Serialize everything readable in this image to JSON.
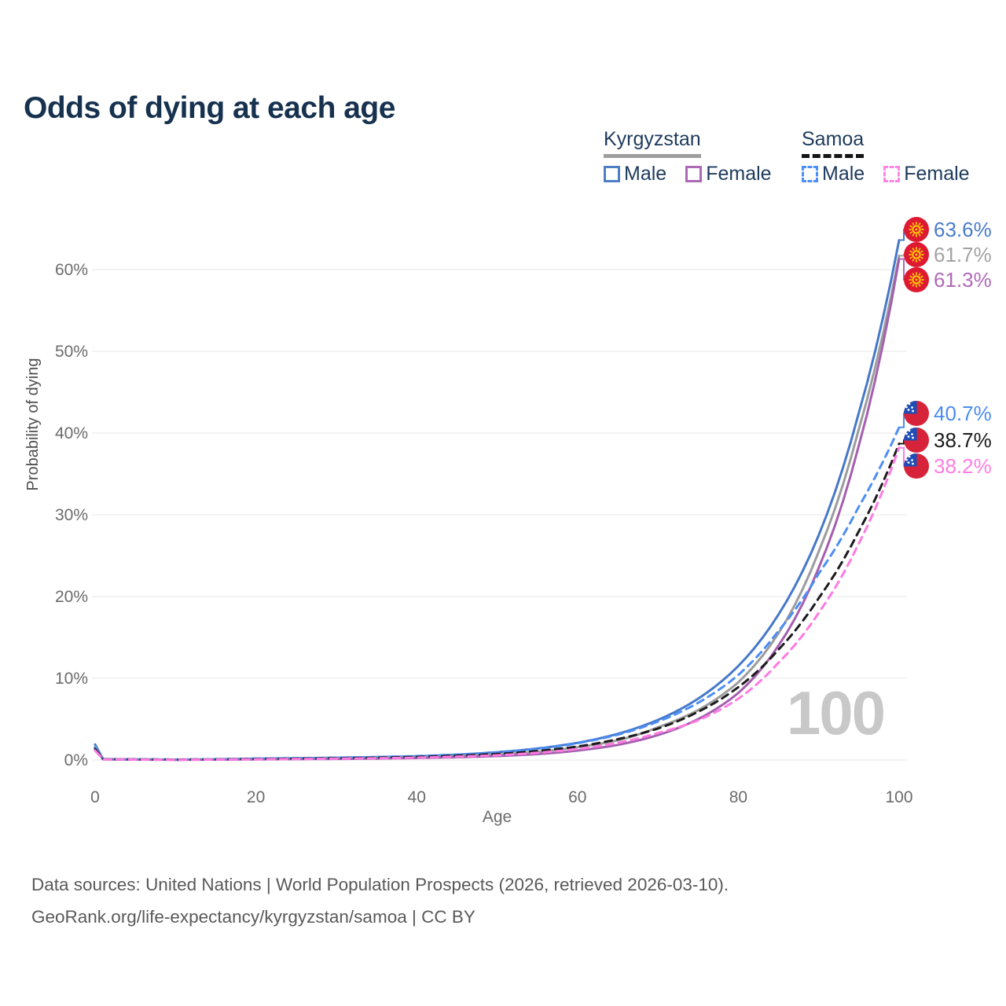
{
  "page": {
    "title": "Odds of dying at each age",
    "watermark_age": "100",
    "footer_line1": "Data sources: United Nations | World Population Prospects (2026, retrieved 2026-03-10).",
    "footer_line2": "GeoRank.org/life-expectancy/kyrgyzstan/samoa | CC BY"
  },
  "legend": {
    "groups": [
      {
        "name": "Kyrgyzstan",
        "underline_style": "solid",
        "underline_color": "#9e9e9e",
        "items": [
          {
            "label": "Male",
            "swatch_color": "#4e7fc6",
            "swatch_style": "solid"
          },
          {
            "label": "Female",
            "swatch_color": "#ad69b5",
            "swatch_style": "solid"
          }
        ]
      },
      {
        "name": "Samoa",
        "underline_style": "dashed",
        "underline_color": "#151515",
        "items": [
          {
            "label": "Male",
            "swatch_color": "#4d8ef5",
            "swatch_style": "dashed"
          },
          {
            "label": "Female",
            "swatch_color": "#ff85e6",
            "swatch_style": "dashed"
          }
        ]
      }
    ]
  },
  "chart_data": {
    "type": "line",
    "title": "Odds of dying at each age",
    "xlabel": "Age",
    "ylabel": "Probability of dying",
    "xlim": [
      0,
      100
    ],
    "ylim_percent": [
      0,
      66
    ],
    "xticks": [
      0,
      20,
      40,
      60,
      80,
      100
    ],
    "ytick_values": [
      0,
      10,
      20,
      30,
      40,
      50,
      60
    ],
    "ytick_labels": [
      "0%",
      "10%",
      "20%",
      "30%",
      "40%",
      "50%",
      "60%"
    ],
    "grid": "horizontal-only",
    "legend_position": "top-right",
    "control_ages": [
      0,
      1,
      10,
      20,
      30,
      40,
      50,
      55,
      60,
      65,
      70,
      75,
      80,
      85,
      90,
      95,
      100
    ],
    "series": [
      {
        "name": "Kyrgyzstan Male",
        "country": "Kyrgyzstan",
        "sex": "Male",
        "line_style": "solid",
        "color": "#4678c8",
        "label_color": "#4a7cc9",
        "flag": "kg",
        "end_label": "63.6%",
        "end_value": 63.6,
        "values_percent": [
          1.9,
          0.12,
          0.05,
          0.17,
          0.28,
          0.45,
          0.95,
          1.4,
          2.1,
          3.2,
          4.9,
          7.5,
          11.5,
          17.8,
          27.5,
          42.5,
          63.6
        ]
      },
      {
        "name": "Kyrgyzstan Both",
        "country": "Kyrgyzstan",
        "sex": "Both",
        "line_style": "solid",
        "color": "#9c9c9c",
        "label_color": "#a3a3a3",
        "flag": "kg",
        "end_label": "61.7%",
        "end_value": 61.7,
        "values_percent": [
          1.65,
          0.1,
          0.04,
          0.12,
          0.2,
          0.33,
          0.68,
          1.0,
          1.55,
          2.4,
          4.0,
          6.1,
          9.5,
          15.5,
          25.5,
          40.5,
          61.7
        ]
      },
      {
        "name": "Kyrgyzstan Female",
        "country": "Kyrgyzstan",
        "sex": "Female",
        "line_style": "solid",
        "color": "#a45fae",
        "label_color": "#b06ab8",
        "flag": "kg",
        "end_label": "61.3%",
        "end_value": 61.3,
        "values_percent": [
          1.4,
          0.09,
          0.03,
          0.08,
          0.13,
          0.24,
          0.48,
          0.72,
          1.15,
          1.85,
          3.05,
          5.0,
          8.2,
          14.0,
          23.5,
          38.5,
          61.3
        ]
      },
      {
        "name": "Samoa Male",
        "country": "Samoa",
        "sex": "Male",
        "line_style": "dashed",
        "color": "#4d8ef5",
        "label_color": "#4b8cf0",
        "flag": "ws",
        "end_label": "40.7%",
        "end_value": 40.7,
        "values_percent": [
          1.55,
          0.11,
          0.05,
          0.16,
          0.27,
          0.48,
          0.92,
          1.35,
          2.05,
          3.1,
          4.7,
          7.0,
          10.4,
          15.8,
          22.8,
          31.0,
          40.7
        ]
      },
      {
        "name": "Samoa Both",
        "country": "Samoa",
        "sex": "Both",
        "line_style": "dashed",
        "color": "#1c1c1c",
        "label_color": "#1a1a1a",
        "flag": "ws",
        "end_label": "38.7%",
        "end_value": 38.7,
        "values_percent": [
          1.35,
          0.1,
          0.04,
          0.12,
          0.21,
          0.38,
          0.74,
          1.1,
          1.65,
          2.55,
          3.85,
          5.9,
          8.9,
          13.5,
          19.8,
          28.0,
          38.7
        ]
      },
      {
        "name": "Samoa Female",
        "country": "Samoa",
        "sex": "Female",
        "line_style": "dashed",
        "color": "#ff7ae1",
        "label_color": "#ff7de4",
        "flag": "ws",
        "end_label": "38.2%",
        "end_value": 38.2,
        "values_percent": [
          1.15,
          0.08,
          0.03,
          0.09,
          0.16,
          0.29,
          0.58,
          0.88,
          1.35,
          2.1,
          3.3,
          4.85,
          7.5,
          11.9,
          18.0,
          26.5,
          38.2
        ]
      }
    ],
    "flag_colors": {
      "kg_red": "#dd1a32",
      "kg_yellow": "#ffcf00",
      "ws_red": "#d7233a",
      "ws_blue": "#1e4db7",
      "ws_star": "#ffffff"
    }
  }
}
